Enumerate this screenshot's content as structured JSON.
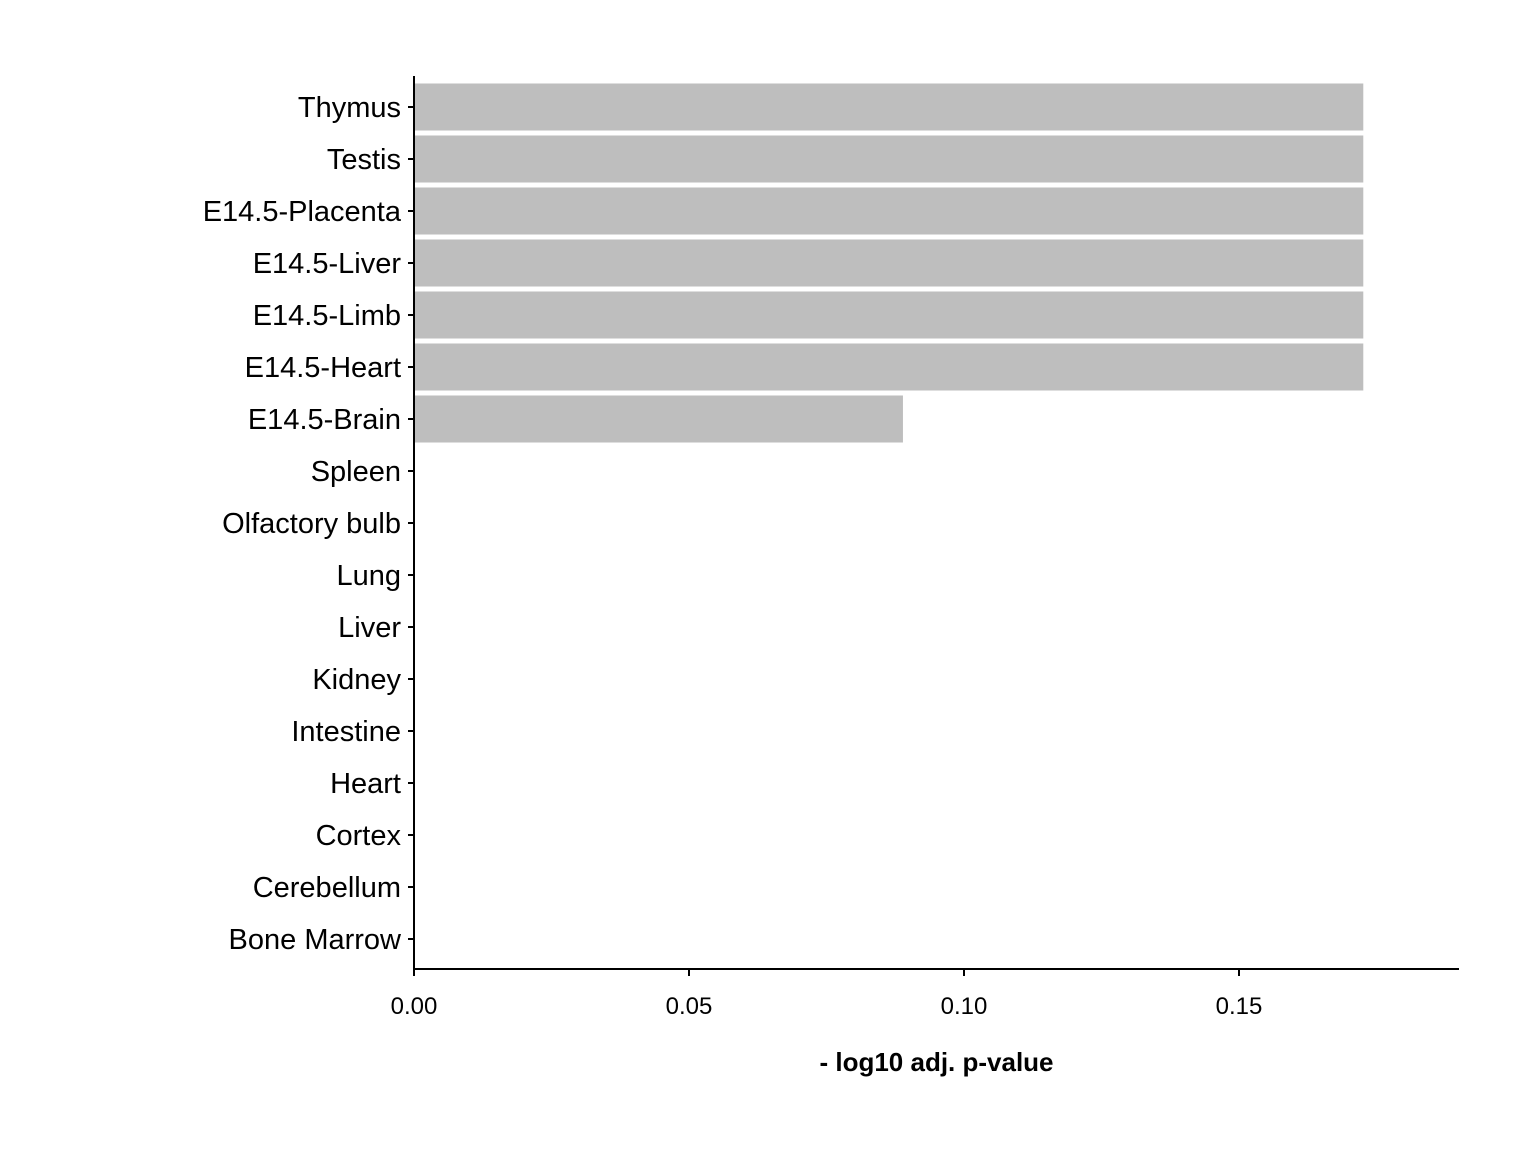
{
  "chart_data": {
    "type": "bar",
    "orientation": "horizontal",
    "categories": [
      "Thymus",
      "Testis",
      "E14.5-Placenta",
      "E14.5-Liver",
      "E14.5-Limb",
      "E14.5-Heart",
      "E14.5-Brain",
      "Spleen",
      "Olfactory bulb",
      "Lung",
      "Liver",
      "Kidney",
      "Intestine",
      "Heart",
      "Cortex",
      "Cerebellum",
      "Bone Marrow"
    ],
    "values": [
      0.1726,
      0.1726,
      0.1726,
      0.1726,
      0.1726,
      0.1726,
      0.0889,
      0,
      0,
      0,
      0,
      0,
      0,
      0,
      0,
      0,
      0
    ],
    "xlabel": "- log10 adj. p-value",
    "ylabel": "",
    "xlim": [
      0,
      0.19
    ],
    "xticks": [
      0.0,
      0.05,
      0.1,
      0.15
    ],
    "xtick_labels": [
      "0.00",
      "0.05",
      "0.10",
      "0.15"
    ],
    "bar_color": "#bebebe",
    "grid": false,
    "legend": "none"
  }
}
